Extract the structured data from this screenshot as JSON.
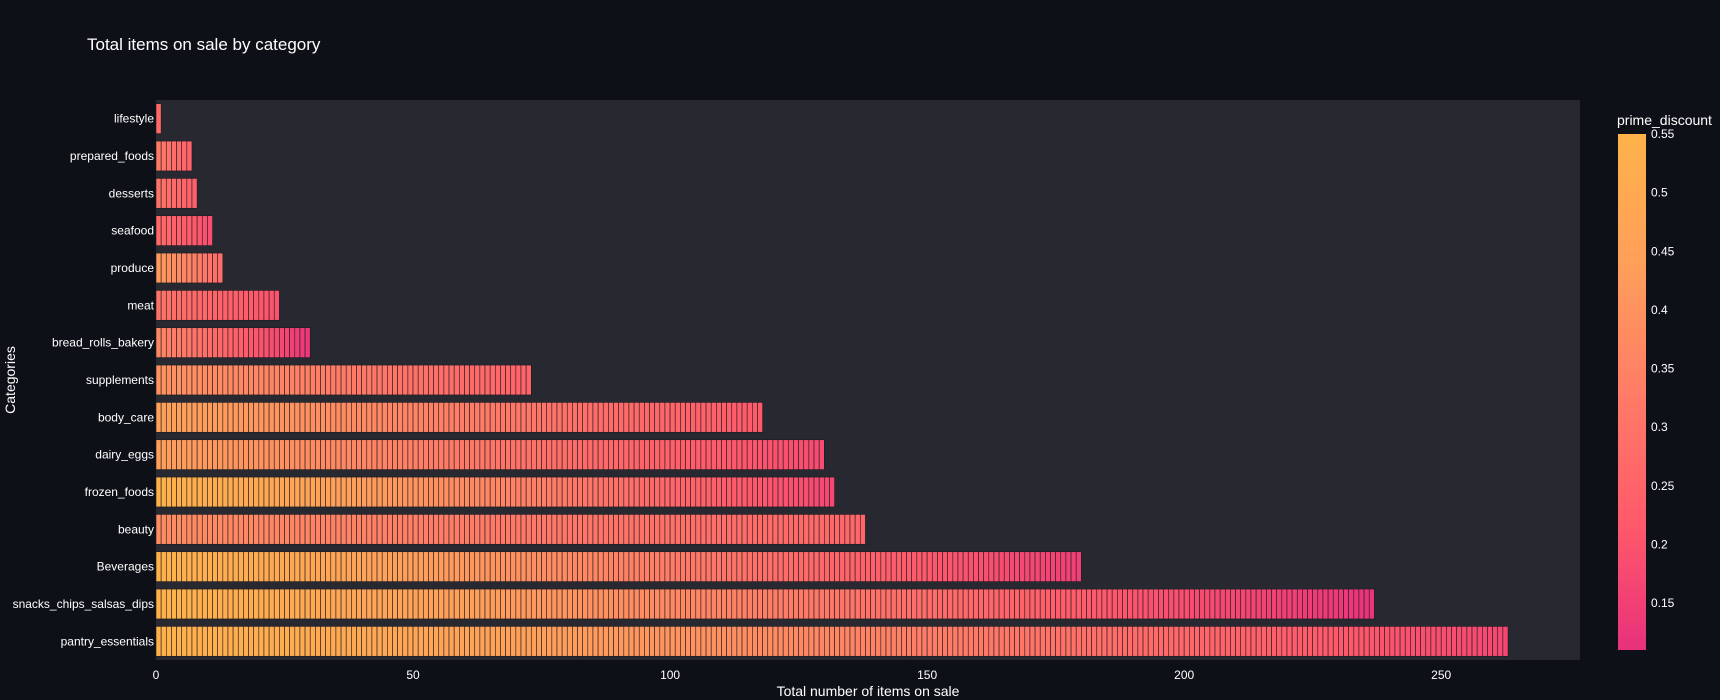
{
  "chart_data": {
    "type": "bar",
    "orientation": "horizontal",
    "title": "Total items on sale by category",
    "xlabel": "Total number of items on sale",
    "ylabel": "Categories",
    "xlim": [
      0,
      277
    ],
    "xticks": [
      0,
      50,
      100,
      150,
      200,
      250
    ],
    "grid": false,
    "categories": [
      "lifestyle",
      "prepared_foods",
      "desserts",
      "seafood",
      "produce",
      "meat",
      "bread_rolls_bakery",
      "supplements",
      "body_care",
      "dairy_eggs",
      "frozen_foods",
      "beauty",
      "Beverages",
      "snacks_chips_salsas_dips",
      "pantry_essentials"
    ],
    "values": [
      1,
      7,
      8,
      11,
      13,
      24,
      30,
      73,
      118,
      130,
      132,
      138,
      180,
      237,
      263
    ],
    "discount_range": [
      [
        0.27,
        0.27
      ],
      [
        0.32,
        0.25
      ],
      [
        0.3,
        0.24
      ],
      [
        0.27,
        0.19
      ],
      [
        0.42,
        0.28
      ],
      [
        0.3,
        0.2
      ],
      [
        0.36,
        0.13
      ],
      [
        0.4,
        0.25
      ],
      [
        0.45,
        0.22
      ],
      [
        0.44,
        0.18
      ],
      [
        0.55,
        0.17
      ],
      [
        0.38,
        0.26
      ],
      [
        0.55,
        0.15
      ],
      [
        0.55,
        0.12
      ],
      [
        0.55,
        0.17
      ]
    ],
    "colorbar": {
      "title": "prime_discount",
      "min": 0.11,
      "max": 0.55,
      "ticks": [
        "0.55",
        "0.5",
        "0.45",
        "0.4",
        "0.35",
        "0.3",
        "0.25",
        "0.2",
        "0.15"
      ],
      "colorscale": [
        "#e8317b",
        "#ff5a6a",
        "#ff7c66",
        "#ff9f5a",
        "#ffb24a"
      ]
    },
    "colors": {
      "background": "#0d1117",
      "plot_background": "#282830",
      "segment_edge": "#1c1c24"
    }
  }
}
